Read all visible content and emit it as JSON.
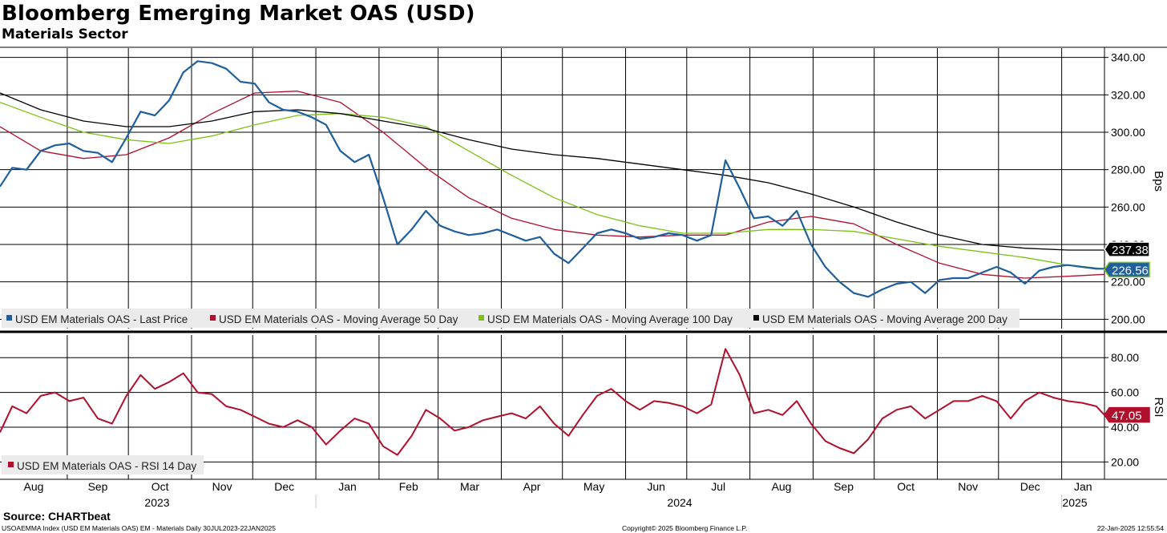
{
  "title": "Bloomberg Emerging Market OAS (USD)",
  "subtitle": "Materials Sector",
  "source": "Source: CHARTbeat",
  "footer": {
    "left": "USOAEMMA Index (USD EM Materials OAS) EM - Materials  Daily 30JUL2023-22JAN2025",
    "center": "Copyright© 2025 Bloomberg Finance L.P.",
    "right": "22-Jan-2025 12:55:54"
  },
  "colors": {
    "last_price": "#1f5f9e",
    "ma50": "#b0102c",
    "ma100": "#7cc214",
    "ma200": "#000000",
    "rsi": "#b0102c",
    "grid": "#000000"
  },
  "chart_data": [
    {
      "type": "line",
      "panel": "OAS",
      "ylabel": "Bps",
      "ylim": [
        195,
        345
      ],
      "yticks": [
        "340.00",
        "320.00",
        "300.00",
        "280.00",
        "260.00",
        "240.00",
        "220.00",
        "200.00"
      ],
      "x_range": [
        "2023-07-30",
        "2025-01-22"
      ],
      "month_labels": [
        "Aug",
        "Sep",
        "Oct",
        "Nov",
        "Dec",
        "Jan",
        "Feb",
        "Mar",
        "Apr",
        "May",
        "Jun",
        "Jul",
        "Aug",
        "Sep",
        "Oct",
        "Nov",
        "Dec",
        "Jan"
      ],
      "year_labels": [
        "2023",
        "2024",
        "2025"
      ],
      "legend": [
        "USD EM Materials OAS - Last Price",
        "USD EM Materials OAS - Moving Average 50 Day",
        "USD EM Materials OAS - Moving Average 100 Day",
        "USD EM Materials OAS - Moving Average 200 Day"
      ],
      "last_value_labels": [
        "237.38",
        "226.56"
      ],
      "series": [
        {
          "name": "USD EM Materials OAS - Last Price",
          "x": [
            "2023-07-30",
            "2023-08-05",
            "2023-08-12",
            "2023-08-19",
            "2023-08-26",
            "2023-09-02",
            "2023-09-09",
            "2023-09-16",
            "2023-09-23",
            "2023-09-30",
            "2023-10-07",
            "2023-10-14",
            "2023-10-21",
            "2023-10-28",
            "2023-11-04",
            "2023-11-11",
            "2023-11-18",
            "2023-11-25",
            "2023-12-02",
            "2023-12-09",
            "2023-12-16",
            "2023-12-23",
            "2023-12-30",
            "2024-01-06",
            "2024-01-13",
            "2024-01-20",
            "2024-01-27",
            "2024-02-03",
            "2024-02-10",
            "2024-02-17",
            "2024-02-24",
            "2024-03-02",
            "2024-03-09",
            "2024-03-16",
            "2024-03-23",
            "2024-03-30",
            "2024-04-06",
            "2024-04-13",
            "2024-04-20",
            "2024-04-27",
            "2024-05-04",
            "2024-05-11",
            "2024-05-18",
            "2024-05-25",
            "2024-06-01",
            "2024-06-08",
            "2024-06-15",
            "2024-06-22",
            "2024-06-29",
            "2024-07-06",
            "2024-07-13",
            "2024-07-20",
            "2024-07-27",
            "2024-08-03",
            "2024-08-10",
            "2024-08-17",
            "2024-08-24",
            "2024-08-31",
            "2024-09-07",
            "2024-09-14",
            "2024-09-21",
            "2024-09-28",
            "2024-10-05",
            "2024-10-12",
            "2024-10-19",
            "2024-10-26",
            "2024-11-02",
            "2024-11-09",
            "2024-11-16",
            "2024-11-23",
            "2024-11-30",
            "2024-12-07",
            "2024-12-14",
            "2024-12-21",
            "2024-12-28",
            "2025-01-04",
            "2025-01-11",
            "2025-01-18",
            "2025-01-22"
          ],
          "values": [
            271,
            281,
            280,
            290,
            293,
            294,
            290,
            289,
            284,
            297,
            311,
            309,
            317,
            332,
            338,
            337,
            334,
            327,
            326,
            316,
            312,
            311,
            308,
            304,
            290,
            284,
            288,
            265,
            240,
            248,
            258,
            250,
            247,
            245,
            246,
            248,
            245,
            242,
            244,
            235,
            230,
            238,
            246,
            248,
            246,
            243,
            244,
            246,
            245,
            242,
            245,
            285,
            270,
            254,
            255,
            250,
            258,
            240,
            228,
            220,
            214,
            212,
            216,
            219,
            220,
            214,
            221,
            222,
            222,
            225,
            228,
            225,
            219,
            226,
            228,
            229,
            228,
            227,
            227
          ]
        },
        {
          "name": "USD EM Materials OAS - Moving Average 50 Day",
          "x": [
            "2023-07-30",
            "2023-08-19",
            "2023-09-09",
            "2023-09-30",
            "2023-10-21",
            "2023-11-11",
            "2023-12-02",
            "2023-12-23",
            "2024-01-13",
            "2024-02-03",
            "2024-02-24",
            "2024-03-16",
            "2024-04-06",
            "2024-04-27",
            "2024-05-18",
            "2024-06-08",
            "2024-06-29",
            "2024-07-20",
            "2024-08-10",
            "2024-08-31",
            "2024-09-21",
            "2024-10-12",
            "2024-11-02",
            "2024-11-23",
            "2024-12-14",
            "2025-01-04",
            "2025-01-22"
          ],
          "values": [
            303,
            290,
            286,
            288,
            297,
            310,
            321,
            322,
            316,
            300,
            281,
            265,
            254,
            248,
            245,
            244,
            245,
            245,
            252,
            255,
            251,
            240,
            230,
            224,
            222,
            223,
            224
          ]
        },
        {
          "name": "USD EM Materials OAS - Moving Average 100 Day",
          "x": [
            "2023-07-30",
            "2023-08-19",
            "2023-09-09",
            "2023-09-30",
            "2023-10-21",
            "2023-11-11",
            "2023-12-02",
            "2023-12-23",
            "2024-01-13",
            "2024-02-03",
            "2024-02-24",
            "2024-03-16",
            "2024-04-06",
            "2024-04-27",
            "2024-05-18",
            "2024-06-08",
            "2024-06-29",
            "2024-07-20",
            "2024-08-10",
            "2024-08-31",
            "2024-09-21",
            "2024-10-12",
            "2024-11-02",
            "2024-11-23",
            "2024-12-14",
            "2025-01-04",
            "2025-01-22"
          ],
          "values": [
            316,
            308,
            300,
            296,
            294,
            298,
            304,
            309,
            310,
            308,
            303,
            290,
            277,
            265,
            256,
            250,
            246,
            246,
            248,
            248,
            247,
            243,
            239,
            236,
            233,
            229,
            227
          ]
        },
        {
          "name": "USD EM Materials OAS - Moving Average 200 Day",
          "x": [
            "2023-07-30",
            "2023-08-19",
            "2023-09-09",
            "2023-09-30",
            "2023-10-21",
            "2023-11-11",
            "2023-12-02",
            "2023-12-23",
            "2024-01-13",
            "2024-02-03",
            "2024-02-24",
            "2024-03-16",
            "2024-04-06",
            "2024-04-27",
            "2024-05-18",
            "2024-06-08",
            "2024-06-29",
            "2024-07-20",
            "2024-08-10",
            "2024-08-31",
            "2024-09-21",
            "2024-10-12",
            "2024-11-02",
            "2024-11-23",
            "2024-12-14",
            "2025-01-04",
            "2025-01-22"
          ],
          "values": [
            321,
            312,
            306,
            303,
            303,
            306,
            311,
            312,
            310,
            306,
            302,
            296,
            291,
            288,
            286,
            283,
            280,
            277,
            273,
            267,
            260,
            252,
            245,
            240,
            238,
            237,
            237
          ]
        }
      ]
    },
    {
      "type": "line",
      "panel": "RSI",
      "ylabel": "RSI",
      "ylim": [
        10,
        93
      ],
      "yticks": [
        "80.00",
        "60.00",
        "40.00",
        "20.00"
      ],
      "legend": [
        "USD EM Materials OAS - RSI 14 Day"
      ],
      "last_value_labels": [
        "47.05"
      ],
      "series": [
        {
          "name": "USD EM Materials OAS - RSI 14 Day",
          "x": [
            "2023-07-30",
            "2023-08-05",
            "2023-08-12",
            "2023-08-19",
            "2023-08-26",
            "2023-09-02",
            "2023-09-09",
            "2023-09-16",
            "2023-09-23",
            "2023-09-30",
            "2023-10-07",
            "2023-10-14",
            "2023-10-21",
            "2023-10-28",
            "2023-11-04",
            "2023-11-11",
            "2023-11-18",
            "2023-11-25",
            "2023-12-02",
            "2023-12-09",
            "2023-12-16",
            "2023-12-23",
            "2023-12-30",
            "2024-01-06",
            "2024-01-13",
            "2024-01-20",
            "2024-01-27",
            "2024-02-03",
            "2024-02-10",
            "2024-02-17",
            "2024-02-24",
            "2024-03-02",
            "2024-03-09",
            "2024-03-16",
            "2024-03-23",
            "2024-03-30",
            "2024-04-06",
            "2024-04-13",
            "2024-04-20",
            "2024-04-27",
            "2024-05-04",
            "2024-05-11",
            "2024-05-18",
            "2024-05-25",
            "2024-06-01",
            "2024-06-08",
            "2024-06-15",
            "2024-06-22",
            "2024-06-29",
            "2024-07-06",
            "2024-07-13",
            "2024-07-20",
            "2024-07-27",
            "2024-08-03",
            "2024-08-10",
            "2024-08-17",
            "2024-08-24",
            "2024-08-31",
            "2024-09-07",
            "2024-09-14",
            "2024-09-21",
            "2024-09-28",
            "2024-10-05",
            "2024-10-12",
            "2024-10-19",
            "2024-10-26",
            "2024-11-02",
            "2024-11-09",
            "2024-11-16",
            "2024-11-23",
            "2024-11-30",
            "2024-12-07",
            "2024-12-14",
            "2024-12-21",
            "2024-12-28",
            "2025-01-04",
            "2025-01-11",
            "2025-01-18",
            "2025-01-22"
          ],
          "values": [
            37,
            52,
            48,
            58,
            60,
            55,
            57,
            45,
            42,
            58,
            70,
            62,
            66,
            71,
            60,
            59,
            52,
            50,
            46,
            42,
            40,
            44,
            40,
            30,
            38,
            45,
            42,
            29,
            24,
            35,
            50,
            45,
            38,
            40,
            44,
            46,
            48,
            45,
            52,
            42,
            35,
            47,
            58,
            62,
            55,
            50,
            55,
            54,
            52,
            48,
            53,
            85,
            70,
            48,
            50,
            47,
            55,
            42,
            32,
            28,
            25,
            33,
            45,
            50,
            52,
            45,
            50,
            55,
            55,
            58,
            55,
            45,
            55,
            60,
            57,
            55,
            54,
            52,
            47
          ]
        }
      ]
    }
  ]
}
